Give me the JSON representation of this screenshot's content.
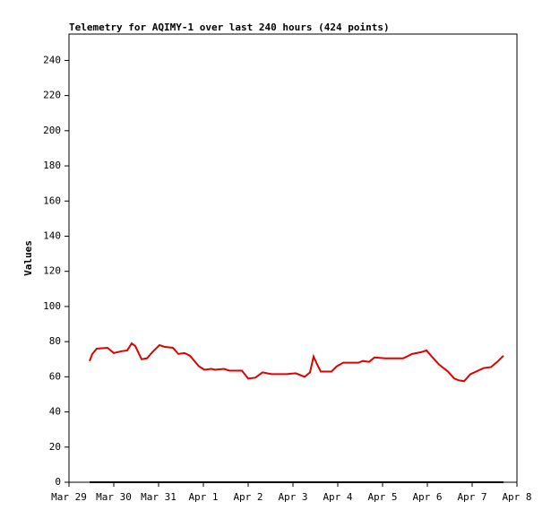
{
  "chart_data": {
    "type": "line",
    "title": "Telemetry for AQIMY-1 over last 240 hours (424 points)",
    "y_label": "Values",
    "xlim": [
      0,
      10
    ],
    "xticks": [
      {
        "value": 0,
        "label": "Mar 29"
      },
      {
        "value": 1,
        "label": "Mar 30"
      },
      {
        "value": 2,
        "label": "Mar 31"
      },
      {
        "value": 3,
        "label": "Apr 1"
      },
      {
        "value": 4,
        "label": "Apr 2"
      },
      {
        "value": 5,
        "label": "Apr 3"
      },
      {
        "value": 6,
        "label": "Apr 4"
      },
      {
        "value": 7,
        "label": "Apr 5"
      },
      {
        "value": 8,
        "label": "Apr 6"
      },
      {
        "value": 9,
        "label": "Apr 7"
      },
      {
        "value": 10,
        "label": "Apr 8"
      }
    ],
    "ylim": [
      0,
      255
    ],
    "yticks": [
      0,
      20,
      40,
      60,
      80,
      100,
      120,
      140,
      160,
      180,
      200,
      220,
      240
    ],
    "series": [
      {
        "color": "#e00000",
        "x": [
          0.46,
          0.52,
          0.62,
          0.86,
          1.0,
          1.16,
          1.3,
          1.4,
          1.48,
          1.62,
          1.74,
          1.86,
          2.02,
          2.14,
          2.32,
          2.44,
          2.58,
          2.7,
          2.9,
          3.02,
          3.18,
          3.26,
          3.46,
          3.58,
          3.86,
          4.0,
          4.16,
          4.32,
          4.52,
          4.66,
          4.86,
          5.06,
          5.26,
          5.38,
          5.46,
          5.54,
          5.62,
          5.86,
          5.98,
          6.12,
          6.46,
          6.56,
          6.7,
          6.82,
          7.06,
          7.46,
          7.66,
          7.86,
          7.98,
          8.1,
          8.26,
          8.46,
          8.6,
          8.7,
          8.82,
          8.96,
          9.26,
          9.42,
          9.56,
          9.7
        ],
        "values": [
          69,
          73,
          76,
          76.5,
          73.5,
          74.5,
          75,
          79,
          77.5,
          70,
          70.5,
          74,
          78,
          77,
          76.5,
          73,
          73.5,
          72,
          66,
          64,
          64.5,
          64,
          64.5,
          63.5,
          63.5,
          59,
          59.5,
          62.5,
          61.5,
          61.5,
          61.5,
          62,
          60,
          62.5,
          71.5,
          67,
          63,
          63,
          66,
          68,
          68,
          69,
          68.5,
          71,
          70.5,
          70.5,
          73,
          74,
          75,
          71.5,
          67,
          63,
          59,
          58,
          57.5,
          61.5,
          65,
          65.5,
          68.5,
          72
        ]
      },
      {
        "color": "#000000",
        "x": [
          0.46,
          9.7
        ],
        "values": [
          0,
          0
        ]
      }
    ]
  }
}
